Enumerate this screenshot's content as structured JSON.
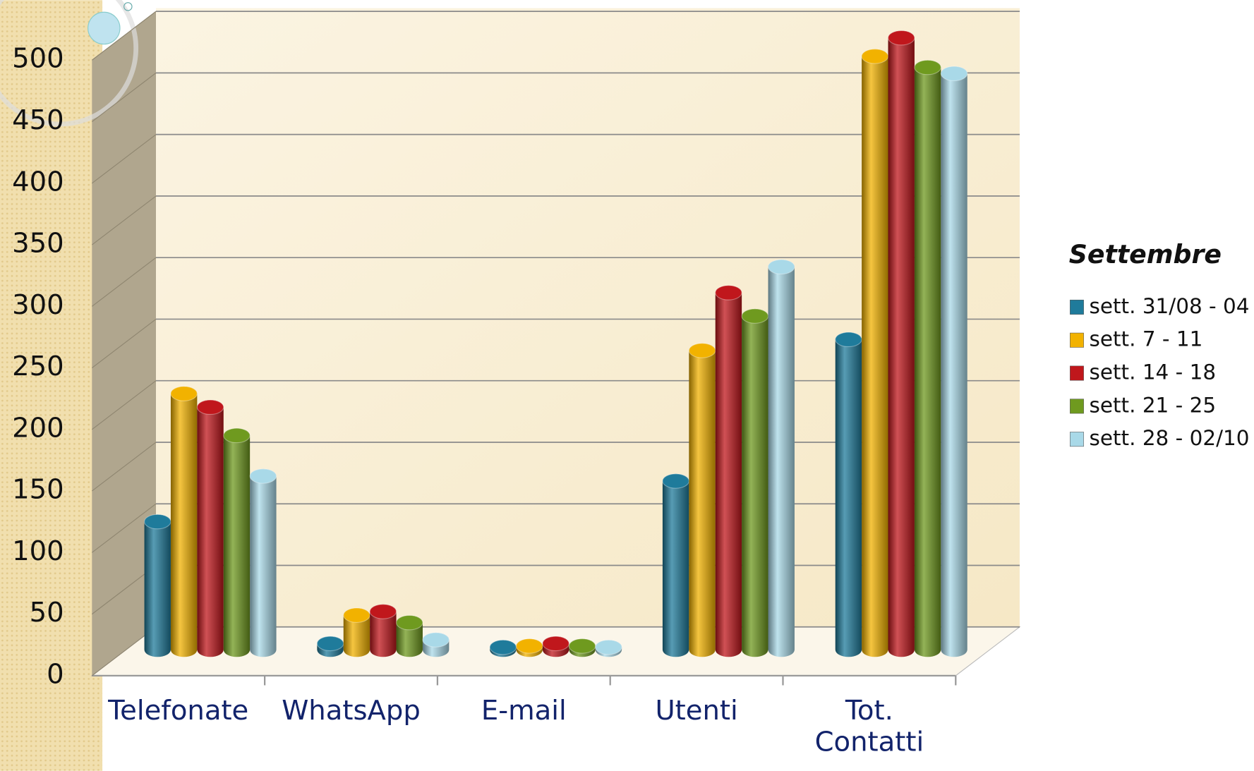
{
  "chart_data": {
    "type": "bar3d",
    "categories": [
      "Telefonate",
      "WhatsApp",
      "E-mail",
      "Utenti",
      "Tot. Contatti"
    ],
    "series": [
      {
        "name": "sett. 31/08 - 04",
        "color": "#1f7b9b",
        "values": [
          104,
          5,
          2,
          137,
          252
        ]
      },
      {
        "name": "sett. 7 - 11",
        "color": "#f2b200",
        "values": [
          208,
          28,
          3,
          243,
          482
        ]
      },
      {
        "name": "sett. 14 - 18",
        "color": "#c0171c",
        "values": [
          197,
          31,
          5,
          290,
          497
        ]
      },
      {
        "name": "sett. 21 - 25",
        "color": "#6f9a1f",
        "values": [
          174,
          22,
          3,
          271,
          473
        ]
      },
      {
        "name": "sett. 28 - 02/10",
        "color": "#a9d9e8",
        "values": [
          141,
          8,
          2,
          311,
          468
        ]
      }
    ],
    "legend_title": "Settembre",
    "ylim": [
      0,
      500
    ],
    "yticks": [
      0,
      50,
      100,
      150,
      200,
      250,
      300,
      350,
      400,
      450,
      500
    ],
    "grid": true,
    "legend": "right"
  }
}
